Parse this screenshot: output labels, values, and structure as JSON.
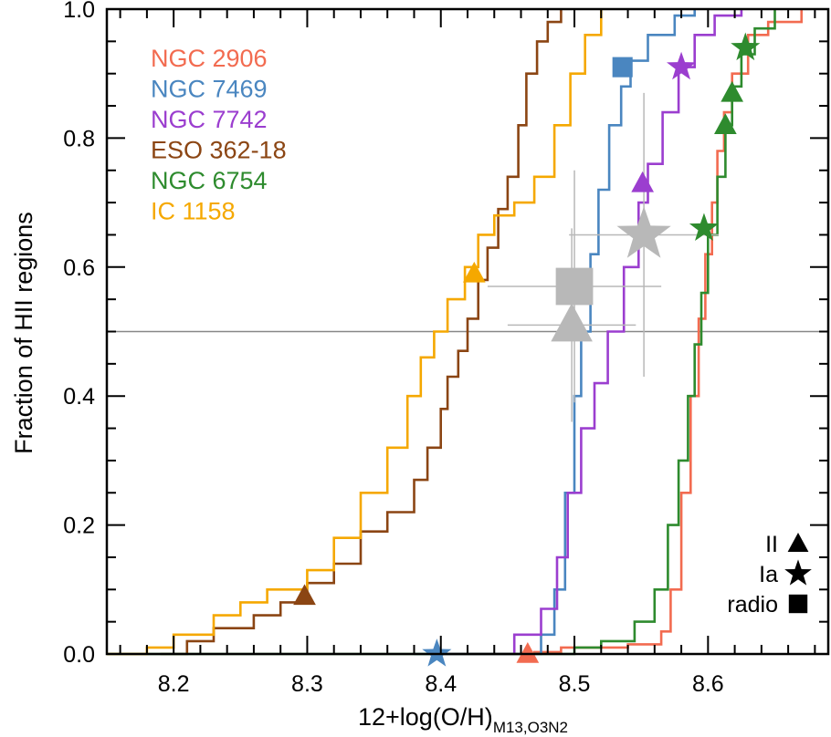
{
  "chart_data": {
    "type": "line",
    "subtype": "cumulative-distribution",
    "xlabel_main": "12+log(O/H)",
    "xlabel_sub": "M13,O3N2",
    "ylabel": "Fraction of HII regions",
    "xlim": [
      8.15,
      8.69
    ],
    "ylim": [
      0.0,
      1.0
    ],
    "xticks": [
      8.2,
      8.3,
      8.4,
      8.5,
      8.6
    ],
    "xtick_labels": [
      "8.2",
      "8.3",
      "8.4",
      "8.5",
      "8.6"
    ],
    "yticks": [
      0.0,
      0.2,
      0.4,
      0.6,
      0.8,
      1.0
    ],
    "ytick_labels": [
      "0.0",
      "0.2",
      "0.4",
      "0.6",
      "0.8",
      "1.0"
    ],
    "reference_line_y": 0.5,
    "legend_position": "top-left",
    "series": [
      {
        "name": "NGC 2906",
        "color": "#f26b50",
        "points": [
          [
            8.4,
            0.0
          ],
          [
            8.45,
            0.0
          ],
          [
            8.47,
            0.003
          ],
          [
            8.49,
            0.01
          ],
          [
            8.54,
            0.015
          ],
          [
            8.565,
            0.035
          ],
          [
            8.572,
            0.1
          ],
          [
            8.58,
            0.25
          ],
          [
            8.587,
            0.4
          ],
          [
            8.593,
            0.52
          ],
          [
            8.598,
            0.62
          ],
          [
            8.603,
            0.7
          ],
          [
            8.607,
            0.78
          ],
          [
            8.612,
            0.84
          ],
          [
            8.618,
            0.9
          ],
          [
            8.63,
            0.96
          ],
          [
            8.645,
            0.98
          ],
          [
            8.67,
            1.0
          ]
        ]
      },
      {
        "name": "NGC 7469",
        "color": "#4a86c0",
        "points": [
          [
            8.38,
            0.0
          ],
          [
            8.45,
            0.0
          ],
          [
            8.475,
            0.03
          ],
          [
            8.485,
            0.1
          ],
          [
            8.493,
            0.25
          ],
          [
            8.5,
            0.4
          ],
          [
            8.505,
            0.5
          ],
          [
            8.512,
            0.62
          ],
          [
            8.518,
            0.72
          ],
          [
            8.526,
            0.82
          ],
          [
            8.535,
            0.88
          ],
          [
            8.542,
            0.92
          ],
          [
            8.555,
            0.96
          ],
          [
            8.575,
            0.99
          ],
          [
            8.59,
            1.0
          ]
        ]
      },
      {
        "name": "NGC 7742",
        "color": "#9b3ecf",
        "points": [
          [
            8.4,
            0.0
          ],
          [
            8.43,
            0.0
          ],
          [
            8.455,
            0.03
          ],
          [
            8.475,
            0.07
          ],
          [
            8.487,
            0.15
          ],
          [
            8.495,
            0.25
          ],
          [
            8.505,
            0.35
          ],
          [
            8.515,
            0.42
          ],
          [
            8.525,
            0.5
          ],
          [
            8.537,
            0.6
          ],
          [
            8.548,
            0.7
          ],
          [
            8.555,
            0.76
          ],
          [
            8.566,
            0.84
          ],
          [
            8.578,
            0.91
          ],
          [
            8.59,
            0.96
          ],
          [
            8.605,
            0.99
          ],
          [
            8.625,
            1.0
          ]
        ]
      },
      {
        "name": "ESO 362-18",
        "color": "#8b4513",
        "points": [
          [
            8.19,
            0.0
          ],
          [
            8.21,
            0.02
          ],
          [
            8.23,
            0.04
          ],
          [
            8.26,
            0.06
          ],
          [
            8.28,
            0.08
          ],
          [
            8.3,
            0.11
          ],
          [
            8.32,
            0.14
          ],
          [
            8.34,
            0.19
          ],
          [
            8.36,
            0.22
          ],
          [
            8.38,
            0.27
          ],
          [
            8.39,
            0.32
          ],
          [
            8.4,
            0.38
          ],
          [
            8.405,
            0.43
          ],
          [
            8.413,
            0.47
          ],
          [
            8.42,
            0.52
          ],
          [
            8.428,
            0.58
          ],
          [
            8.435,
            0.63
          ],
          [
            8.443,
            0.69
          ],
          [
            8.45,
            0.74
          ],
          [
            8.458,
            0.82
          ],
          [
            8.464,
            0.9
          ],
          [
            8.472,
            0.95
          ],
          [
            8.48,
            0.98
          ],
          [
            8.49,
            1.0
          ]
        ]
      },
      {
        "name": "NGC 6754",
        "color": "#2e8b2e",
        "points": [
          [
            8.15,
            0.0
          ],
          [
            8.47,
            0.0
          ],
          [
            8.5,
            0.01
          ],
          [
            8.52,
            0.02
          ],
          [
            8.545,
            0.05
          ],
          [
            8.56,
            0.1
          ],
          [
            8.57,
            0.2
          ],
          [
            8.578,
            0.3
          ],
          [
            8.585,
            0.4
          ],
          [
            8.59,
            0.48
          ],
          [
            8.595,
            0.56
          ],
          [
            8.6,
            0.65
          ],
          [
            8.607,
            0.74
          ],
          [
            8.613,
            0.82
          ],
          [
            8.618,
            0.88
          ],
          [
            8.625,
            0.93
          ],
          [
            8.635,
            0.97
          ],
          [
            8.65,
            1.0
          ]
        ]
      },
      {
        "name": "IC 1158",
        "color": "#f5a800",
        "points": [
          [
            8.15,
            0.0
          ],
          [
            8.18,
            0.01
          ],
          [
            8.2,
            0.03
          ],
          [
            8.23,
            0.06
          ],
          [
            8.25,
            0.08
          ],
          [
            8.27,
            0.1
          ],
          [
            8.3,
            0.13
          ],
          [
            8.32,
            0.18
          ],
          [
            8.34,
            0.25
          ],
          [
            8.36,
            0.32
          ],
          [
            8.375,
            0.4
          ],
          [
            8.385,
            0.46
          ],
          [
            8.395,
            0.5
          ],
          [
            8.405,
            0.55
          ],
          [
            8.418,
            0.6
          ],
          [
            8.428,
            0.65
          ],
          [
            8.44,
            0.68
          ],
          [
            8.455,
            0.7
          ],
          [
            8.47,
            0.74
          ],
          [
            8.485,
            0.82
          ],
          [
            8.497,
            0.9
          ],
          [
            8.508,
            0.96
          ],
          [
            8.52,
            1.0
          ]
        ]
      }
    ],
    "markers": [
      {
        "series": "NGC 2906",
        "type": "II",
        "x": 8.465,
        "y": 0.0,
        "color": "#f26b50"
      },
      {
        "series": "NGC 7469",
        "type": "Ia",
        "x": 8.397,
        "y": 0.0,
        "color": "#4a86c0"
      },
      {
        "series": "NGC 7469",
        "type": "radio",
        "x": 8.536,
        "y": 0.91,
        "color": "#4a86c0"
      },
      {
        "series": "NGC 7742",
        "type": "II",
        "x": 8.551,
        "y": 0.73,
        "color": "#9b3ecf"
      },
      {
        "series": "NGC 7742",
        "type": "Ia",
        "x": 8.58,
        "y": 0.91,
        "color": "#9b3ecf"
      },
      {
        "series": "ESO 362-18",
        "type": "II",
        "x": 8.298,
        "y": 0.09,
        "color": "#8b4513"
      },
      {
        "series": "NGC 6754",
        "type": "Ia",
        "x": 8.597,
        "y": 0.66,
        "color": "#2e8b2e"
      },
      {
        "series": "NGC 6754",
        "type": "II",
        "x": 8.613,
        "y": 0.82,
        "color": "#2e8b2e"
      },
      {
        "series": "NGC 6754",
        "type": "II",
        "x": 8.618,
        "y": 0.87,
        "color": "#2e8b2e"
      },
      {
        "series": "NGC 6754",
        "type": "Ia",
        "x": 8.628,
        "y": 0.94,
        "color": "#2e8b2e"
      },
      {
        "series": "IC 1158",
        "type": "II",
        "x": 8.425,
        "y": 0.59,
        "color": "#f5a800"
      }
    ],
    "averages": [
      {
        "type": "II",
        "x": 8.498,
        "y": 0.51,
        "xerr": 0.048,
        "yerr": 0.15
      },
      {
        "type": "radio",
        "x": 8.5,
        "y": 0.57,
        "xerr": 0.065,
        "yerr": 0.18
      },
      {
        "type": "Ia",
        "x": 8.552,
        "y": 0.65,
        "xerr": 0.056,
        "yerr": 0.22
      }
    ],
    "average_color": "#b8b8b8",
    "symbol_key": [
      {
        "label": "II",
        "type": "II"
      },
      {
        "label": "Ia",
        "type": "Ia"
      },
      {
        "label": "radio",
        "type": "radio"
      }
    ]
  }
}
